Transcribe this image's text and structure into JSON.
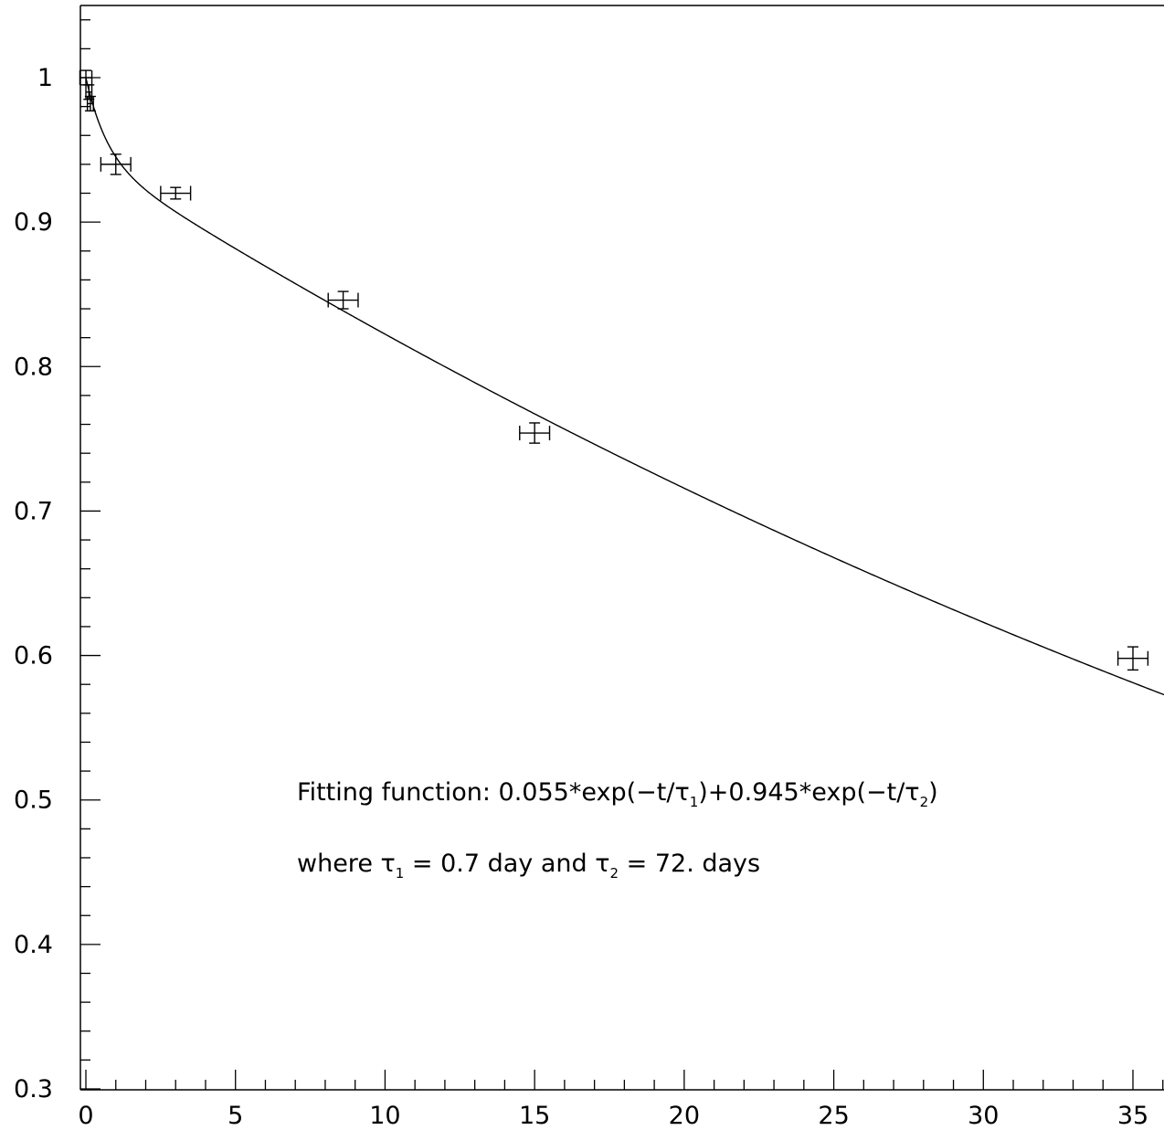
{
  "chart_data": {
    "type": "scatter",
    "title": "",
    "xlabel": "",
    "ylabel": "",
    "xlim": [
      0,
      36
    ],
    "ylim": [
      0.3,
      1.05
    ],
    "x_ticks": [
      0,
      5,
      10,
      15,
      20,
      25,
      30,
      35
    ],
    "x_tick_labels": [
      "0",
      "5",
      "10",
      "15",
      "20",
      "25",
      "30",
      "35"
    ],
    "y_ticks": [
      0.3,
      0.4,
      0.5,
      0.6,
      0.7,
      0.8,
      0.9,
      1.0
    ],
    "y_tick_labels": [
      "0.3",
      "0.4",
      "0.5",
      "0.6",
      "0.7",
      "0.8",
      "0.9",
      "1"
    ],
    "grid": false,
    "points": [
      {
        "x": 0.0,
        "y": 1.0,
        "xerr": 0.2,
        "yerr": 0.005
      },
      {
        "x": 0.1,
        "y": 0.99,
        "xerr": 0.1,
        "yerr": 0.005
      },
      {
        "x": 0.15,
        "y": 0.982,
        "xerr": 0.1,
        "yerr": 0.005
      },
      {
        "x": 1.0,
        "y": 0.94,
        "xerr": 0.5,
        "yerr": 0.007
      },
      {
        "x": 3.0,
        "y": 0.92,
        "xerr": 0.5,
        "yerr": 0.004
      },
      {
        "x": 8.6,
        "y": 0.846,
        "xerr": 0.5,
        "yerr": 0.006
      },
      {
        "x": 15.0,
        "y": 0.754,
        "xerr": 0.5,
        "yerr": 0.007
      },
      {
        "x": 35.0,
        "y": 0.598,
        "xerr": 0.5,
        "yerr": 0.008
      }
    ],
    "fit": {
      "a1": 0.055,
      "tau1": 0.7,
      "a2": 0.945,
      "tau2": 72
    },
    "annotations": {
      "line1": {
        "prefix": "Fitting function: 0.055*exp(−t/τ",
        "sub1": "1",
        "mid": ")+0.945*exp(−t/τ",
        "sub2": "2",
        "suffix": ")"
      },
      "line2": {
        "prefix": "where τ",
        "sub1": "1",
        "mid": " = 0.7 day and τ",
        "sub2": "2",
        "suffix": " = 72. days"
      }
    }
  }
}
